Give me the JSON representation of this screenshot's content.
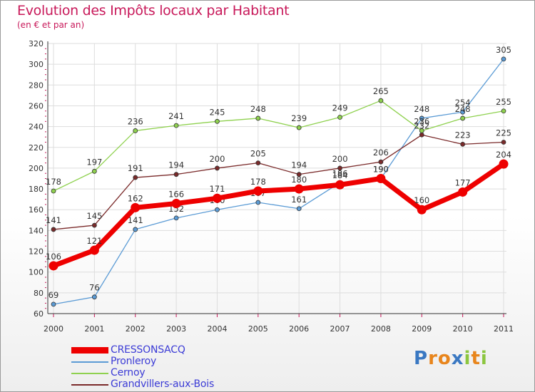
{
  "header": {
    "title": "Evolution des Impôts locaux par Habitant",
    "subtitle": "(en € et par an)"
  },
  "logo": {
    "letters": [
      "P",
      "r",
      "o",
      "x",
      "i",
      "t",
      "i"
    ],
    "colors": [
      "#3a78c2",
      "#e8851c",
      "#e8851c",
      "#3a78c2",
      "#8cc63f",
      "#e8851c",
      "#8cc63f"
    ]
  },
  "chart_data": {
    "type": "line",
    "title": "Evolution des Impôts locaux par Habitant",
    "subtitle": "(en € et par an)",
    "xlabel": "",
    "ylabel": "",
    "ylim": [
      60,
      320
    ],
    "yticks": [
      "60",
      "80",
      "100",
      "120",
      "140",
      "160",
      "180",
      "200",
      "220",
      "240",
      "260",
      "280",
      "300",
      "320"
    ],
    "categories": [
      "2000",
      "2001",
      "2002",
      "2003",
      "2004",
      "2005",
      "2006",
      "2007",
      "2008",
      "2009",
      "2010",
      "2011"
    ],
    "grid": true,
    "legend_position": "bottom-left",
    "series": [
      {
        "name": "Pronleroy",
        "color": "#5b9bd5",
        "values": [
          69,
          76,
          141,
          152,
          160,
          167,
          161,
          186,
          190,
          248,
          254,
          305
        ],
        "labels": [
          "69",
          "76",
          "141",
          "152",
          "160",
          "167",
          "161",
          "186",
          "190",
          "248",
          "254",
          "305"
        ]
      },
      {
        "name": "Cernoy",
        "color": "#8fd14f",
        "values": [
          178,
          197,
          236,
          241,
          245,
          248,
          239,
          249,
          265,
          236,
          248,
          255
        ],
        "labels": [
          "178",
          "197",
          "236",
          "241",
          "245",
          "248",
          "239",
          "249",
          "265",
          "236",
          "248",
          "255"
        ]
      },
      {
        "name": "Grandvillers-aux-Bois",
        "color": "#7a2a2a",
        "values": [
          141,
          145,
          191,
          194,
          200,
          205,
          194,
          200,
          206,
          232,
          223,
          225
        ],
        "labels": [
          "141",
          "145",
          "191",
          "194",
          "200",
          "205",
          "194",
          "200",
          "206",
          "232",
          "223",
          "225"
        ]
      },
      {
        "name": "CRESSONSACQ",
        "color": "#ee0000",
        "values": [
          106,
          121,
          162,
          166,
          171,
          178,
          180,
          184,
          190,
          160,
          177,
          204
        ],
        "labels": [
          "106",
          "121",
          "162",
          "166",
          "171",
          "178",
          "180",
          "184",
          "190",
          "160",
          "177",
          "204"
        ]
      }
    ],
    "legend": [
      {
        "name": "CRESSONSACQ",
        "color": "#ee0000"
      },
      {
        "name": "Pronleroy",
        "color": "#5b9bd5"
      },
      {
        "name": "Cernoy",
        "color": "#8fd14f"
      },
      {
        "name": "Grandvillers-aux-Bois",
        "color": "#7a2a2a"
      }
    ]
  }
}
